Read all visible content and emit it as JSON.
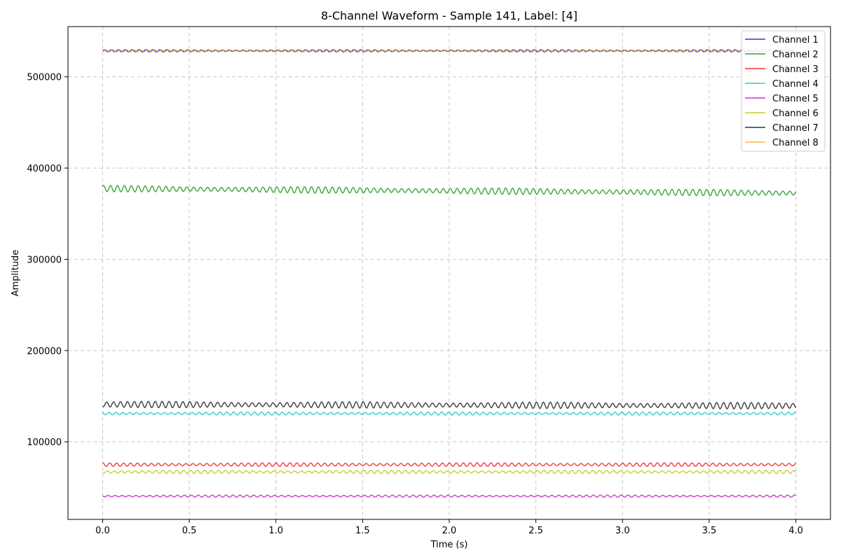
{
  "chart_data": {
    "type": "line",
    "title": "8-Channel Waveform - Sample 141, Label: [4]",
    "xlabel": "Time (s)",
    "ylabel": "Amplitude",
    "xlim": [
      -0.2,
      4.2
    ],
    "ylim": [
      15000,
      555000
    ],
    "xticks": [
      0.0,
      0.5,
      1.0,
      1.5,
      2.0,
      2.5,
      3.0,
      3.5,
      4.0
    ],
    "xtick_labels": [
      "0.0",
      "0.5",
      "1.0",
      "1.5",
      "2.0",
      "2.5",
      "3.0",
      "3.5",
      "4.0"
    ],
    "yticks": [
      100000,
      200000,
      300000,
      400000,
      500000
    ],
    "ytick_labels": [
      "100000",
      "200000",
      "300000",
      "400000",
      "500000"
    ],
    "grid": true,
    "legend_position": "top-right",
    "series": [
      {
        "name": "Channel 1",
        "color": "#0000cc",
        "baseline": 528500,
        "drift": 0,
        "amplitude": 1000,
        "cycles": 100
      },
      {
        "name": "Channel 2",
        "color": "#008800",
        "baseline": 377500,
        "drift": -5000,
        "amplitude": 2800,
        "cycles": 100
      },
      {
        "name": "Channel 3",
        "color": "#ee0000",
        "baseline": 75000,
        "drift": 0,
        "amplitude": 1600,
        "cycles": 100
      },
      {
        "name": "Channel 4",
        "color": "#00bbbb",
        "baseline": 131000,
        "drift": 0,
        "amplitude": 1400,
        "cycles": 100
      },
      {
        "name": "Channel 5",
        "color": "#bb00bb",
        "baseline": 40500,
        "drift": 0,
        "amplitude": 1000,
        "cycles": 100
      },
      {
        "name": "Channel 6",
        "color": "#bbbb00",
        "baseline": 67000,
        "drift": 0,
        "amplitude": 1500,
        "cycles": 100
      },
      {
        "name": "Channel 7",
        "color": "#000000",
        "baseline": 141000,
        "drift": -1500,
        "amplitude": 2800,
        "cycles": 100
      },
      {
        "name": "Channel 8",
        "color": "#ffa500",
        "baseline": 528500,
        "drift": 0,
        "amplitude": 900,
        "cycles": 100
      }
    ]
  }
}
